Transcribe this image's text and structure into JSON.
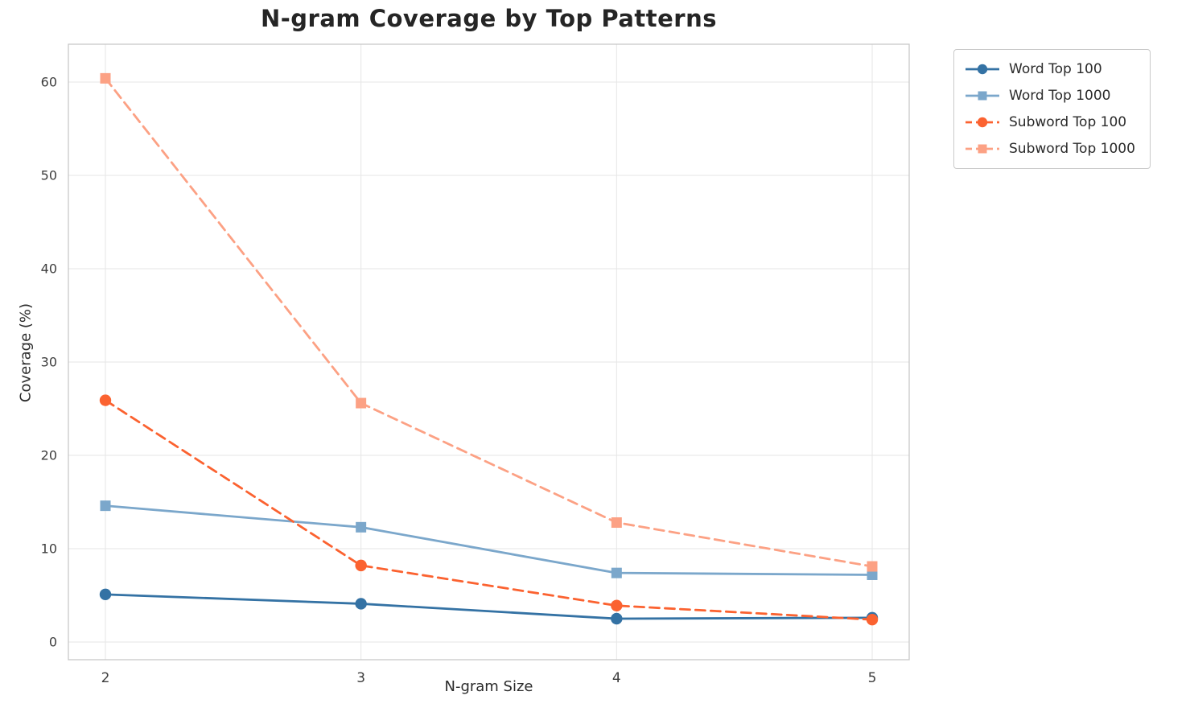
{
  "chart_data": {
    "type": "line",
    "title": "N-gram Coverage by Top Patterns",
    "xlabel": "N-gram Size",
    "ylabel": "Coverage (%)",
    "x": [
      2,
      3,
      4,
      5
    ],
    "xticks": [
      "2",
      "3",
      "4",
      "5"
    ],
    "yticks": [
      0,
      10,
      20,
      30,
      40,
      50,
      60
    ],
    "ylim": [
      -2,
      64
    ],
    "grid": true,
    "legend_position": "outside-upper-right",
    "series": [
      {
        "name": "Word Top 100",
        "values": [
          5.1,
          4.1,
          2.5,
          2.6
        ],
        "color": "#3472a4",
        "marker": "circle",
        "line": "solid"
      },
      {
        "name": "Word Top 1000",
        "values": [
          14.6,
          12.3,
          7.4,
          7.2
        ],
        "color": "#7ba7cb",
        "marker": "square",
        "line": "solid"
      },
      {
        "name": "Subword Top 100",
        "values": [
          25.9,
          8.2,
          3.9,
          2.4
        ],
        "color": "#fb6230",
        "marker": "circle",
        "line": "dashed"
      },
      {
        "name": "Subword Top 1000",
        "values": [
          60.4,
          25.6,
          12.8,
          8.1
        ],
        "color": "#fca184",
        "marker": "square",
        "line": "dashed"
      }
    ],
    "colors": {
      "grid": "#e6e6e6",
      "spine": "#c8c8c8",
      "tick_text": "#3d3d3d"
    }
  }
}
